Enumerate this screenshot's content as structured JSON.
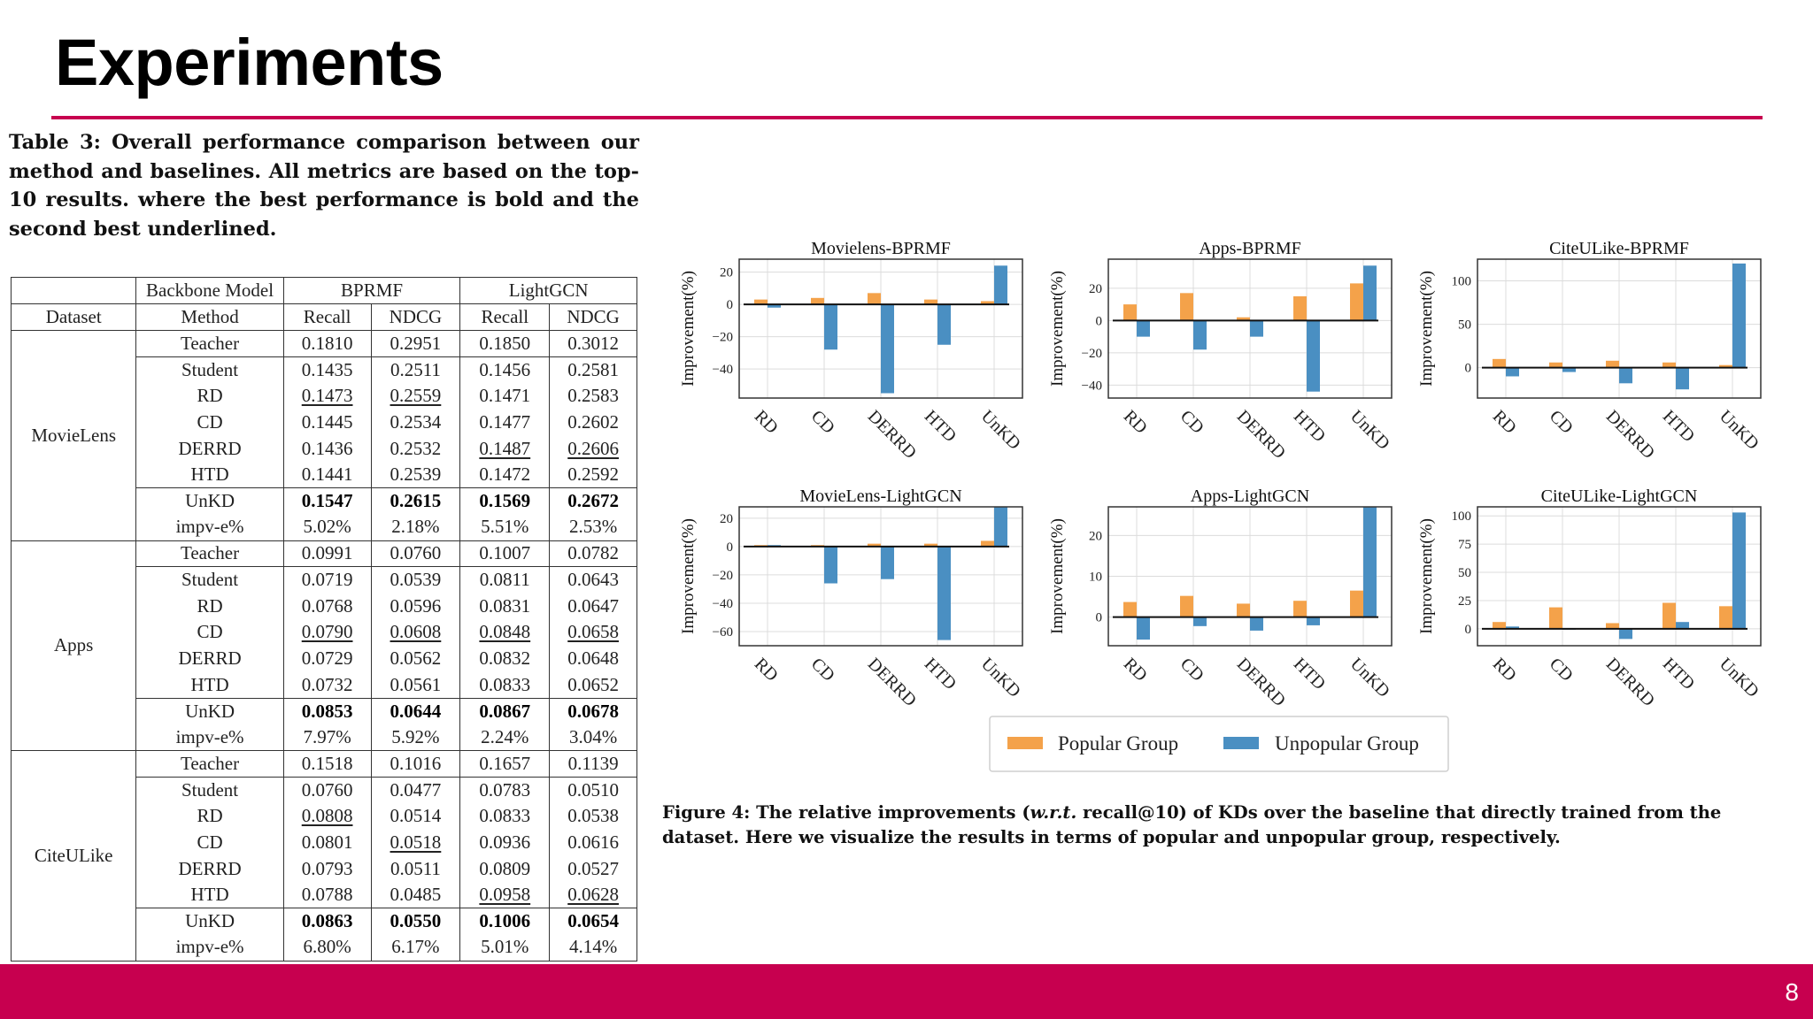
{
  "title": "Experiments",
  "table": {
    "caption": "Table 3: Overall performance comparison between our method and baselines. All metrics are based on the top-10 results. where the best performance is bold and the second best underlined.",
    "header1": {
      "backbone": "Backbone Model",
      "bprmf": "BPRMF",
      "lightgcn": "LightGCN"
    },
    "header2": {
      "dataset": "Dataset",
      "method": "Method",
      "c1": "Recall",
      "c2": "NDCG",
      "c3": "Recall",
      "c4": "NDCG"
    },
    "datasets": [
      {
        "name": "MovieLens",
        "rows": [
          {
            "m": "Teacher",
            "v": [
              "0.1810",
              "0.2951",
              "0.1850",
              "0.3012"
            ],
            "f": [
              "",
              "",
              "",
              ""
            ]
          },
          {
            "m": "Student",
            "v": [
              "0.1435",
              "0.2511",
              "0.1456",
              "0.2581"
            ],
            "f": [
              "",
              "",
              "",
              ""
            ]
          },
          {
            "m": "RD",
            "v": [
              "0.1473",
              "0.2559",
              "0.1471",
              "0.2583"
            ],
            "f": [
              "u",
              "u",
              "",
              ""
            ]
          },
          {
            "m": "CD",
            "v": [
              "0.1445",
              "0.2534",
              "0.1477",
              "0.2602"
            ],
            "f": [
              "",
              "",
              "",
              ""
            ]
          },
          {
            "m": "DERRD",
            "v": [
              "0.1436",
              "0.2532",
              "0.1487",
              "0.2606"
            ],
            "f": [
              "",
              "",
              "u",
              "u"
            ]
          },
          {
            "m": "HTD",
            "v": [
              "0.1441",
              "0.2539",
              "0.1472",
              "0.2592"
            ],
            "f": [
              "",
              "",
              "",
              ""
            ]
          },
          {
            "m": "UnKD",
            "v": [
              "0.1547",
              "0.2615",
              "0.1569",
              "0.2672"
            ],
            "f": [
              "b",
              "b",
              "b",
              "b"
            ]
          },
          {
            "m": "impv-e%",
            "v": [
              "5.02%",
              "2.18%",
              "5.51%",
              "2.53%"
            ],
            "f": [
              "",
              "",
              "",
              ""
            ]
          }
        ]
      },
      {
        "name": "Apps",
        "rows": [
          {
            "m": "Teacher",
            "v": [
              "0.0991",
              "0.0760",
              "0.1007",
              "0.0782"
            ],
            "f": [
              "",
              "",
              "",
              ""
            ]
          },
          {
            "m": "Student",
            "v": [
              "0.0719",
              "0.0539",
              "0.0811",
              "0.0643"
            ],
            "f": [
              "",
              "",
              "",
              ""
            ]
          },
          {
            "m": "RD",
            "v": [
              "0.0768",
              "0.0596",
              "0.0831",
              "0.0647"
            ],
            "f": [
              "",
              "",
              "",
              ""
            ]
          },
          {
            "m": "CD",
            "v": [
              "0.0790",
              "0.0608",
              "0.0848",
              "0.0658"
            ],
            "f": [
              "u",
              "u",
              "u",
              "u"
            ]
          },
          {
            "m": "DERRD",
            "v": [
              "0.0729",
              "0.0562",
              "0.0832",
              "0.0648"
            ],
            "f": [
              "",
              "",
              "",
              ""
            ]
          },
          {
            "m": "HTD",
            "v": [
              "0.0732",
              "0.0561",
              "0.0833",
              "0.0652"
            ],
            "f": [
              "",
              "",
              "",
              ""
            ]
          },
          {
            "m": "UnKD",
            "v": [
              "0.0853",
              "0.0644",
              "0.0867",
              "0.0678"
            ],
            "f": [
              "b",
              "b",
              "b",
              "b"
            ]
          },
          {
            "m": "impv-e%",
            "v": [
              "7.97%",
              "5.92%",
              "2.24%",
              "3.04%"
            ],
            "f": [
              "",
              "",
              "",
              ""
            ]
          }
        ]
      },
      {
        "name": "CiteULike",
        "rows": [
          {
            "m": "Teacher",
            "v": [
              "0.1518",
              "0.1016",
              "0.1657",
              "0.1139"
            ],
            "f": [
              "",
              "",
              "",
              ""
            ]
          },
          {
            "m": "Student",
            "v": [
              "0.0760",
              "0.0477",
              "0.0783",
              "0.0510"
            ],
            "f": [
              "",
              "",
              "",
              ""
            ]
          },
          {
            "m": "RD",
            "v": [
              "0.0808",
              "0.0514",
              "0.0833",
              "0.0538"
            ],
            "f": [
              "u",
              "",
              "",
              ""
            ]
          },
          {
            "m": "CD",
            "v": [
              "0.0801",
              "0.0518",
              "0.0936",
              "0.0616"
            ],
            "f": [
              "",
              "u",
              "",
              ""
            ]
          },
          {
            "m": "DERRD",
            "v": [
              "0.0793",
              "0.0511",
              "0.0809",
              "0.0527"
            ],
            "f": [
              "",
              "",
              "",
              ""
            ]
          },
          {
            "m": "HTD",
            "v": [
              "0.0788",
              "0.0485",
              "0.0958",
              "0.0628"
            ],
            "f": [
              "",
              "",
              "u",
              "u"
            ]
          },
          {
            "m": "UnKD",
            "v": [
              "0.0863",
              "0.0550",
              "0.1006",
              "0.0654"
            ],
            "f": [
              "b",
              "b",
              "b",
              "b"
            ]
          },
          {
            "m": "impv-e%",
            "v": [
              "6.80%",
              "6.17%",
              "5.01%",
              "4.14%"
            ],
            "f": [
              "",
              "",
              "",
              ""
            ]
          }
        ]
      }
    ]
  },
  "chart_data": [
    {
      "type": "bar",
      "title": "Movielens-BPRMF",
      "ylabel": "Improvement(%)",
      "categories": [
        "RD",
        "CD",
        "DERRD",
        "HTD",
        "UnKD"
      ],
      "ylim": [
        -58,
        28
      ],
      "yticks": [
        20,
        0,
        -20,
        -40
      ],
      "series": [
        {
          "name": "Popular Group",
          "values": [
            3,
            4,
            7,
            3,
            2
          ]
        },
        {
          "name": "Unpopular Group",
          "values": [
            -2,
            -28,
            -55,
            -25,
            24
          ]
        }
      ]
    },
    {
      "type": "bar",
      "title": "Apps-BPRMF",
      "ylabel": "Improvement(%)",
      "categories": [
        "RD",
        "CD",
        "DERRD",
        "HTD",
        "UnKD"
      ],
      "ylim": [
        -48,
        38
      ],
      "yticks": [
        20,
        0,
        -20,
        -40
      ],
      "series": [
        {
          "name": "Popular Group",
          "values": [
            10,
            17,
            2,
            15,
            23
          ]
        },
        {
          "name": "Unpopular Group",
          "values": [
            -10,
            -18,
            -10,
            -44,
            34
          ]
        }
      ]
    },
    {
      "type": "bar",
      "title": "CiteULike-BPRMF",
      "ylabel": "Improvement(%)",
      "categories": [
        "RD",
        "CD",
        "DERRD",
        "HTD",
        "UnKD"
      ],
      "ylim": [
        -35,
        125
      ],
      "yticks": [
        100,
        50,
        0
      ],
      "series": [
        {
          "name": "Popular Group",
          "values": [
            10,
            6,
            8,
            6,
            3
          ]
        },
        {
          "name": "Unpopular Group",
          "values": [
            -10,
            -5,
            -18,
            -25,
            120
          ]
        }
      ]
    },
    {
      "type": "bar",
      "title": "MovieLens-LightGCN",
      "ylabel": "Improvement(%)",
      "categories": [
        "RD",
        "CD",
        "DERRD",
        "HTD",
        "UnKD"
      ],
      "ylim": [
        -70,
        28
      ],
      "yticks": [
        20,
        0,
        -20,
        -40,
        -60
      ],
      "series": [
        {
          "name": "Popular Group",
          "values": [
            1,
            1,
            2,
            2,
            4
          ]
        },
        {
          "name": "Unpopular Group",
          "values": [
            1,
            -26,
            -23,
            -66,
            28
          ]
        }
      ]
    },
    {
      "type": "bar",
      "title": "Apps-LightGCN",
      "ylabel": "Improvement(%)",
      "categories": [
        "RD",
        "CD",
        "DERRD",
        "HTD",
        "UnKD"
      ],
      "ylim": [
        -7,
        27
      ],
      "yticks": [
        20,
        10,
        0
      ],
      "series": [
        {
          "name": "Popular Group",
          "values": [
            3.7,
            5.2,
            3.3,
            4.0,
            6.5
          ]
        },
        {
          "name": "Unpopular Group",
          "values": [
            -5.5,
            -2.2,
            -3.3,
            -2.0,
            27
          ]
        }
      ]
    },
    {
      "type": "bar",
      "title": "CiteULike-LightGCN",
      "ylabel": "Improvement(%)",
      "categories": [
        "RD",
        "CD",
        "DERRD",
        "HTD",
        "UnKD"
      ],
      "ylim": [
        -15,
        108
      ],
      "yticks": [
        100,
        75,
        50,
        25,
        0
      ],
      "series": [
        {
          "name": "Popular Group",
          "values": [
            6,
            19,
            5,
            23,
            20
          ]
        },
        {
          "name": "Unpopular Group",
          "values": [
            2,
            0,
            -9,
            6,
            103
          ]
        }
      ]
    }
  ],
  "legend": {
    "popular": "Popular Group",
    "unpopular": "Unpopular Group"
  },
  "colors": {
    "popular": "#f4a24a",
    "unpopular": "#4a8fc2",
    "accent": "#c7004f"
  },
  "figure_caption": {
    "prefix": "Figure 4: The relative improvements (",
    "emph": "w.r.t.",
    "suffix": " recall@10) of KDs over the baseline that directly trained from the dataset. Here we visualize the results in terms of popular and unpopular group, respectively."
  },
  "page_number": "8"
}
